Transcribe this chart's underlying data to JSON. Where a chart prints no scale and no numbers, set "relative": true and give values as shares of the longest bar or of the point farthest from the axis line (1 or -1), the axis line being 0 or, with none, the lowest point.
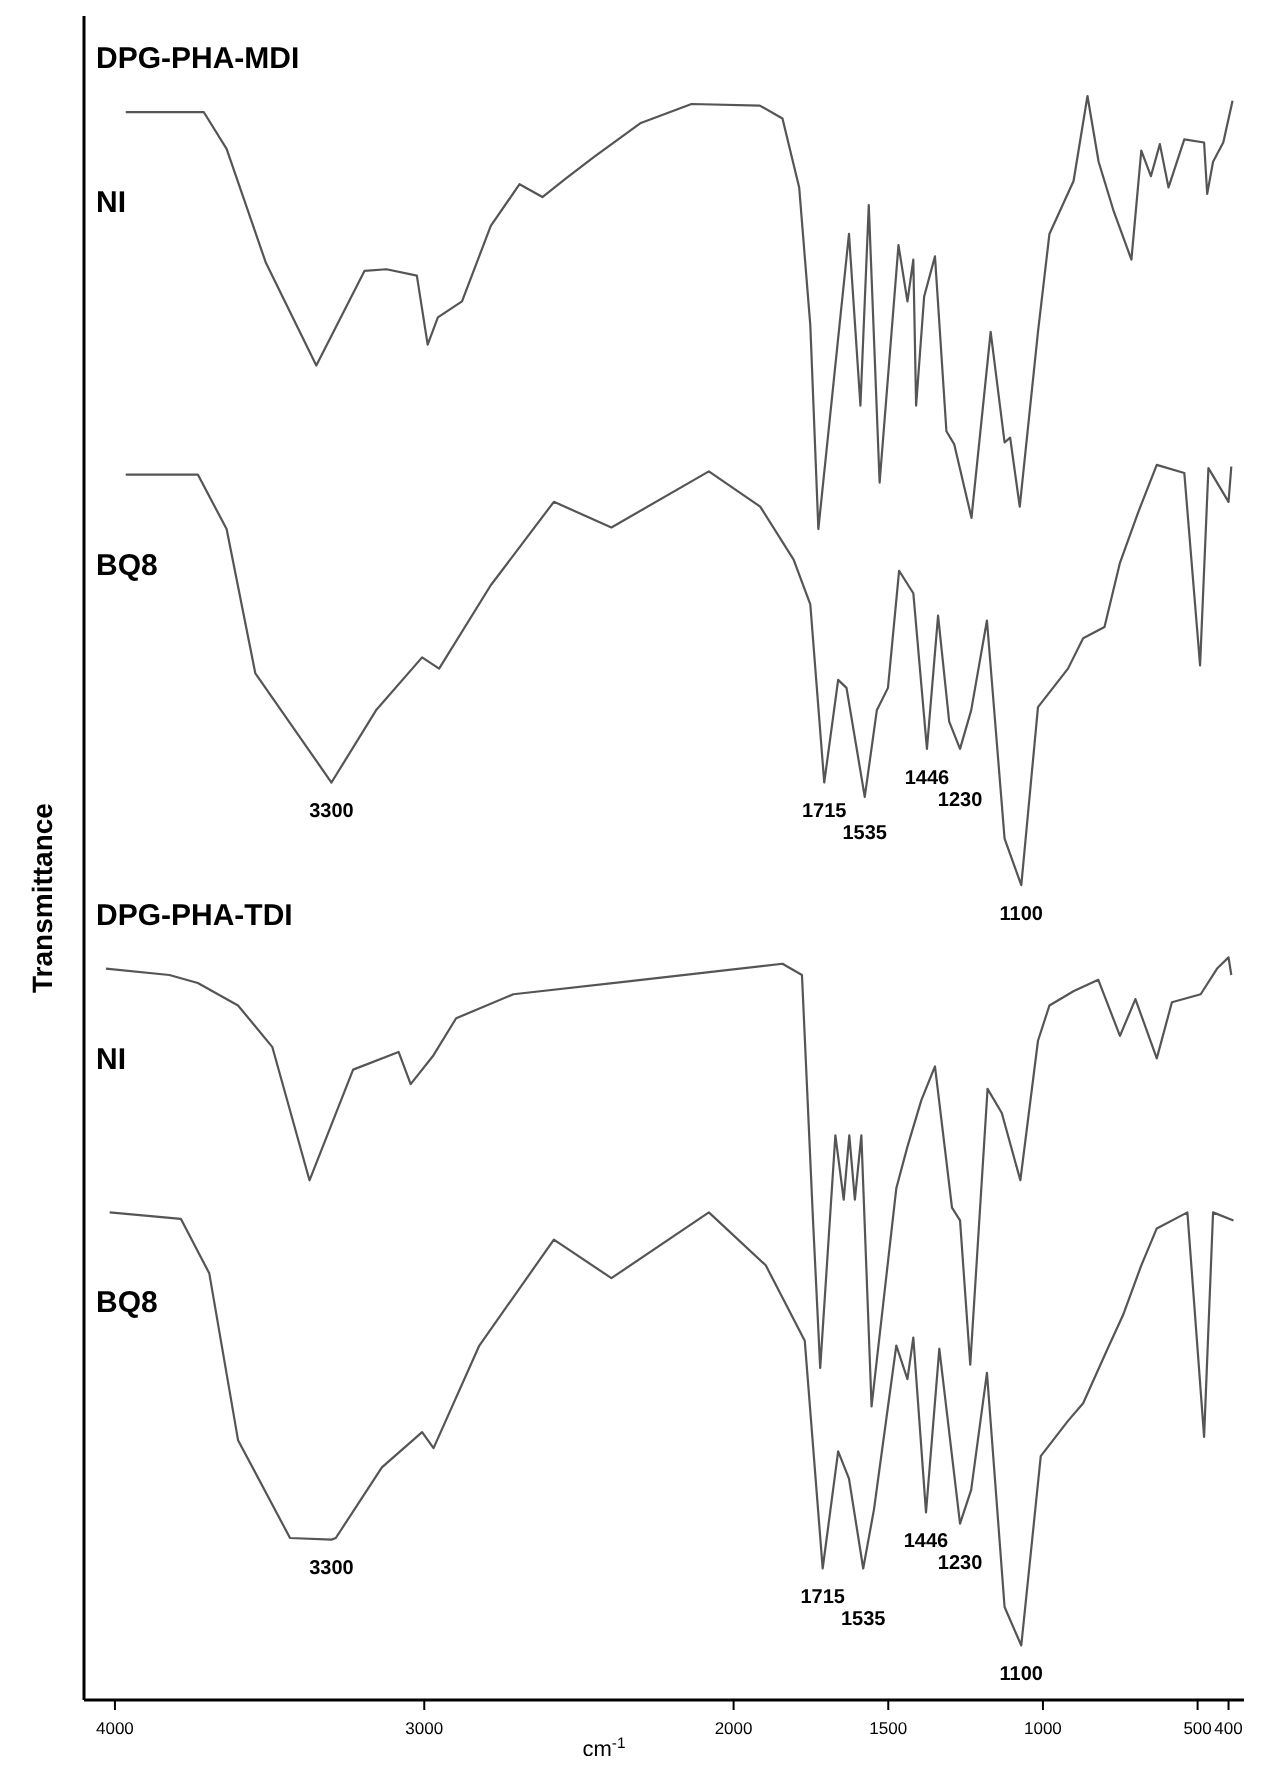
{
  "chart_data": {
    "type": "line",
    "relative": true,
    "xlabel": "cm$^{-1}$",
    "ylabel": "Transmittance",
    "xlim": [
      4100,
      350
    ],
    "xticks": [
      4000,
      3000,
      2000,
      1500,
      1000,
      500,
      400
    ],
    "series": [
      {
        "name": "NI",
        "color": "#555555",
        "x": [
          3965,
          3713,
          3639,
          3512,
          3349,
          3193,
          3122,
          3024,
          2989,
          2956,
          2878,
          2785,
          2692,
          2618,
          2546,
          2451,
          2302,
          2136,
          1915,
          1842,
          1788,
          1752,
          1726,
          1627,
          1590,
          1563,
          1528,
          1467,
          1438,
          1419,
          1410,
          1384,
          1349,
          1312,
          1287,
          1231,
          1169,
          1124,
          1106,
          1075,
          1016,
          979,
          901,
          856,
          820,
          771,
          714,
          682,
          651,
          622,
          594,
          543,
          479,
          469,
          450,
          417,
          387
        ],
        "values": [
          0.99,
          0.99,
          0.967,
          0.896,
          0.832,
          0.891,
          0.892,
          0.888,
          0.845,
          0.862,
          0.872,
          0.919,
          0.945,
          0.937,
          0.948,
          0.962,
          0.983,
          0.995,
          0.994,
          0.986,
          0.943,
          0.857,
          0.73,
          0.914,
          0.807,
          0.932,
          0.759,
          0.907,
          0.872,
          0.898,
          0.807,
          0.875,
          0.9,
          0.791,
          0.783,
          0.737,
          0.853,
          0.784,
          0.787,
          0.744,
          0.853,
          0.914,
          0.947,
          1,
          0.959,
          0.928,
          0.898,
          0.966,
          0.95,
          0.97,
          0.943,
          0.973,
          0.971,
          0.939,
          0.959,
          0.971,
          0.997
        ]
      },
      {
        "name": "BQ8",
        "color": "#555555",
        "x": [
          3965,
          3732,
          3639,
          3546,
          3300,
          3156,
          3007,
          2952,
          2785,
          2581,
          2395,
          2080,
          1914,
          1806,
          1752,
          1707,
          1662,
          1635,
          1576,
          1537,
          1501,
          1465,
          1419,
          1375,
          1339,
          1303,
          1268,
          1232,
          1181,
          1124,
          1070,
          1016,
          919,
          870,
          801,
          751,
          693,
          632,
          543,
          492,
          465,
          400,
          391
        ],
        "values": [
          0.764,
          0.764,
          0.73,
          0.64,
          0.572,
          0.617,
          0.65,
          0.643,
          0.695,
          0.747,
          0.731,
          0.766,
          0.744,
          0.711,
          0.683,
          0.572,
          0.636,
          0.631,
          0.563,
          0.617,
          0.631,
          0.704,
          0.69,
          0.593,
          0.676,
          0.61,
          0.593,
          0.617,
          0.673,
          0.537,
          0.508,
          0.619,
          0.643,
          0.662,
          0.669,
          0.709,
          0.74,
          0.77,
          0.765,
          0.645,
          0.768,
          0.747,
          0.769
        ]
      },
      {
        "name": "NI",
        "color": "#555555",
        "x": [
          4029,
          3824,
          3732,
          3602,
          3491,
          3371,
          3230,
          3083,
          3044,
          2970,
          2897,
          2712,
          2341,
          1842,
          1779,
          1743,
          1720,
          1671,
          1644,
          1626,
          1608,
          1587,
          1554,
          1474,
          1438,
          1393,
          1349,
          1294,
          1268,
          1235,
          1179,
          1133,
          1073,
          1016,
          979,
          900,
          821,
          751,
          701,
          632,
          583,
          490,
          437,
          400,
          391
        ],
        "values": [
          0.456,
          0.452,
          0.447,
          0.433,
          0.407,
          0.324,
          0.393,
          0.404,
          0.384,
          0.402,
          0.425,
          0.44,
          0.448,
          0.459,
          0.452,
          0.298,
          0.207,
          0.352,
          0.312,
          0.352,
          0.312,
          0.352,
          0.183,
          0.319,
          0.345,
          0.374,
          0.395,
          0.307,
          0.299,
          0.209,
          0.381,
          0.366,
          0.324,
          0.411,
          0.433,
          0.442,
          0.449,
          0.414,
          0.437,
          0.4,
          0.435,
          0.44,
          0.456,
          0.463,
          0.452
        ]
      },
      {
        "name": "BQ8",
        "color": "#555555",
        "x": [
          4017,
          3787,
          3695,
          3602,
          3434,
          3300,
          3286,
          3137,
          3007,
          2970,
          2822,
          2581,
          2395,
          2080,
          1896,
          1770,
          1712,
          1662,
          1627,
          1581,
          1546,
          1474,
          1438,
          1419,
          1378,
          1335,
          1268,
          1232,
          1181,
          1124,
          1070,
          1007,
          919,
          870,
          791,
          741,
          682,
          632,
          533,
          479,
          450,
          384
        ],
        "values": [
          0.304,
          0.3,
          0.266,
          0.162,
          0.101,
          0.1,
          0.101,
          0.145,
          0.167,
          0.157,
          0.221,
          0.287,
          0.263,
          0.304,
          0.271,
          0.224,
          0.082,
          0.155,
          0.138,
          0.082,
          0.119,
          0.221,
          0.2,
          0.226,
          0.117,
          0.219,
          0.11,
          0.131,
          0.204,
          0.058,
          0.034,
          0.152,
          0.174,
          0.185,
          0.219,
          0.24,
          0.271,
          0.294,
          0.304,
          0.164,
          0.304,
          0.299
        ]
      }
    ],
    "annotations": [
      "DPG-PHA-MDI",
      "DPG-PHA-TDI",
      {
        "text": "3300",
        "x": 3300,
        "y": 0.572
      },
      {
        "text": "1715",
        "x": 1707,
        "y": 0.572
      },
      {
        "text": "1535",
        "x": 1576,
        "y": 0.563
      },
      {
        "text": "1446",
        "x": 1375,
        "y": 0.593
      },
      {
        "text": "1230",
        "x": 1268,
        "y": 0.593
      },
      {
        "text": "1100",
        "x": 1070,
        "y": 0.508
      },
      {
        "text": "3300",
        "x": 3300,
        "y": 0.1
      },
      {
        "text": "1715",
        "x": 1712,
        "y": 0.082
      },
      {
        "text": "1535",
        "x": 1581,
        "y": 0.082
      },
      {
        "text": "1446",
        "x": 1378,
        "y": 0.117
      },
      {
        "text": "1230",
        "x": 1268,
        "y": 0.11
      },
      {
        "text": "1100",
        "x": 1070,
        "y": 0.034
      }
    ]
  }
}
